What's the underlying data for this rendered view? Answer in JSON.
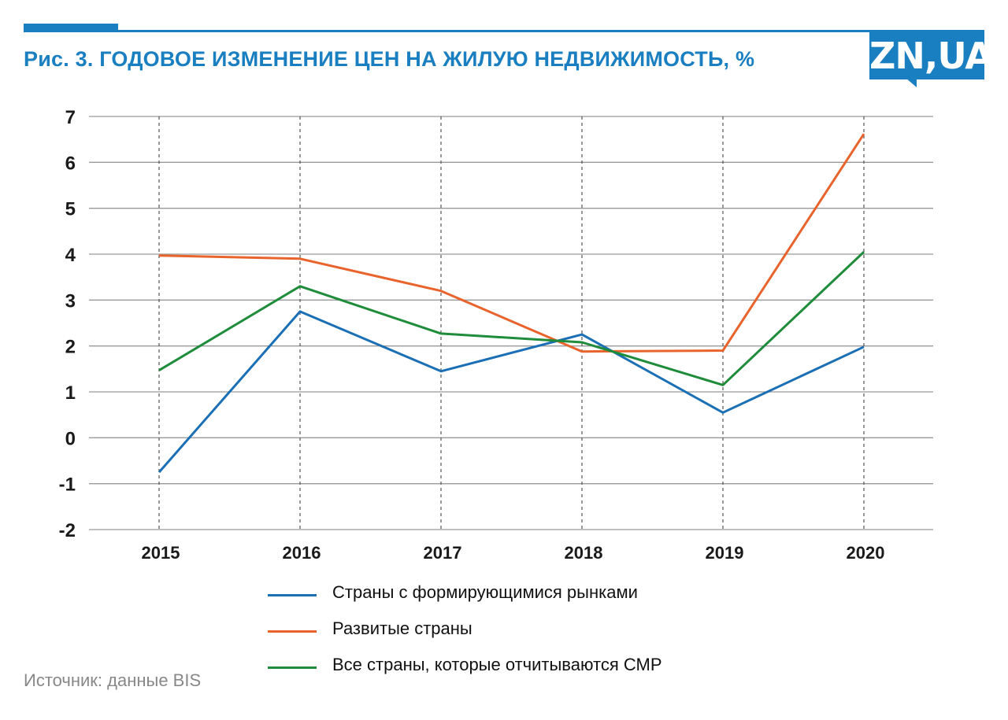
{
  "header": {
    "title": "Рис. 3. ГОДОВОЕ ИЗМЕНЕНИЕ ЦЕН НА ЖИЛУЮ НЕДВИЖИМОСТЬ, %",
    "logo": "ZN,UA"
  },
  "footer": {
    "source": "Источник: данные BIS"
  },
  "colors": {
    "accent": "#1a7fc1",
    "title": "#1a7fc1",
    "grid": "#999999",
    "axis_text": "#1a1a1a"
  },
  "chart_data": {
    "type": "line",
    "title": "Рис. 3. ГОДОВОЕ ИЗМЕНЕНИЕ ЦЕН НА ЖИЛУЮ НЕДВИЖИМОСТЬ, %",
    "xlabel": "",
    "ylabel": "",
    "categories": [
      "2015",
      "2016",
      "2017",
      "2018",
      "2019",
      "2020"
    ],
    "ylim": [
      -2,
      7
    ],
    "yticks": [
      7,
      6,
      5,
      4,
      3,
      2,
      1,
      0,
      -1,
      -2
    ],
    "grid": true,
    "legend_position": "bottom",
    "series": [
      {
        "name": "Страны с формирующимися рынками",
        "color": "#1a6fb5",
        "values": [
          -0.75,
          2.75,
          1.45,
          2.25,
          0.55,
          1.98
        ]
      },
      {
        "name": "Развитые страны",
        "color": "#e8642c",
        "values": [
          3.97,
          3.9,
          3.2,
          1.88,
          1.9,
          6.62
        ]
      },
      {
        "name": "Все страны, которые отчитываются СМР",
        "color": "#1e8c3a",
        "values": [
          1.47,
          3.3,
          2.27,
          2.08,
          1.15,
          4.05
        ]
      }
    ]
  }
}
